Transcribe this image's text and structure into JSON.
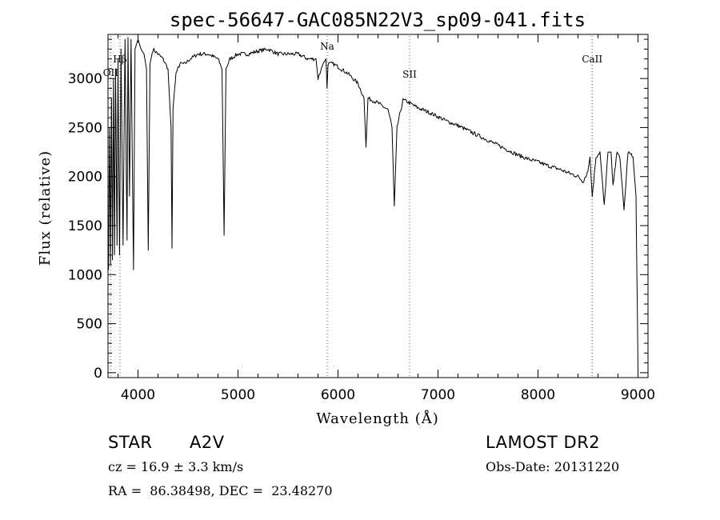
{
  "chart_data": {
    "type": "line",
    "title": "spec-56647-GAC085N22V3_sp09-041.fits",
    "xlabel": "Wavelength (Å)",
    "ylabel": "Flux (relative)",
    "xlim": [
      3700,
      9100
    ],
    "ylim": [
      -50,
      3450
    ],
    "xticks": [
      4000,
      5000,
      6000,
      7000,
      8000,
      9000
    ],
    "yticks": [
      0,
      500,
      1000,
      1500,
      2000,
      2500,
      3000
    ],
    "line_color": "#000000",
    "marker_color": "#cc2222",
    "series": [
      {
        "x": [
          3705,
          3715,
          3725,
          3735,
          3745,
          3755,
          3765,
          3775,
          3790,
          3800,
          3815,
          3830,
          3850,
          3870,
          3890,
          3900,
          3915,
          3930,
          3955,
          3970,
          3985,
          4000,
          4030,
          4060,
          4085,
          4102,
          4120,
          4150,
          4200,
          4250,
          4300,
          4330,
          4340,
          4350,
          4380,
          4420,
          4470,
          4520,
          4600,
          4700,
          4800,
          4840,
          4861,
          4880,
          4920,
          5000,
          5100,
          5200,
          5300,
          5400,
          5500,
          5600,
          5700,
          5780,
          5800,
          5850,
          5880,
          5890,
          5900,
          5950,
          6000,
          6100,
          6200,
          6260,
          6280,
          6300,
          6400,
          6500,
          6540,
          6563,
          6590,
          6650,
          6700,
          6800,
          6900,
          7000,
          7100,
          7200,
          7300,
          7400,
          7500,
          7600,
          7700,
          7800,
          7900,
          8000,
          8100,
          8200,
          8300,
          8400,
          8450,
          8498,
          8520,
          8542,
          8580,
          8620,
          8662,
          8700,
          8730,
          8750,
          8790,
          8820,
          8860,
          8900,
          8950,
          8980,
          8995,
          9000
        ],
        "y": [
          1050,
          2500,
          1100,
          2800,
          1150,
          3000,
          1200,
          3100,
          1300,
          3200,
          1200,
          3300,
          1300,
          3400,
          1350,
          3420,
          1800,
          3400,
          1050,
          3300,
          3350,
          3400,
          3300,
          3250,
          3100,
          1250,
          3150,
          3300,
          3250,
          3200,
          3100,
          2500,
          1270,
          2700,
          3050,
          3150,
          3150,
          3200,
          3250,
          3250,
          3200,
          3100,
          1400,
          3100,
          3200,
          3250,
          3250,
          3280,
          3300,
          3250,
          3250,
          3250,
          3200,
          3200,
          3000,
          3150,
          3200,
          2900,
          3150,
          3150,
          3120,
          3050,
          2950,
          2800,
          2300,
          2800,
          2750,
          2680,
          2500,
          1700,
          2500,
          2780,
          2760,
          2700,
          2660,
          2610,
          2560,
          2520,
          2470,
          2420,
          2370,
          2320,
          2270,
          2220,
          2180,
          2150,
          2110,
          2080,
          2040,
          2000,
          1950,
          2050,
          2200,
          1800,
          2200,
          2250,
          1700,
          2250,
          2250,
          1900,
          2250,
          2200,
          1650,
          2250,
          2200,
          1800,
          500,
          20
        ]
      }
    ],
    "markers": [
      {
        "label": "OII",
        "x": 3727
      },
      {
        "label": "Hβ",
        "x": 3820
      },
      {
        "label": "Na",
        "x": 5892
      },
      {
        "label": "SII",
        "x": 6716
      },
      {
        "label": "CaII",
        "x": 8542
      }
    ]
  },
  "info": {
    "object_type": "STAR",
    "subclass": "A2V",
    "survey": "LAMOST DR2",
    "cz": "cz = 16.9 ± 3.3 km/s",
    "obs_date": "Obs-Date: 20131220",
    "coords": "RA =  86.38498, DEC =  23.48270"
  }
}
